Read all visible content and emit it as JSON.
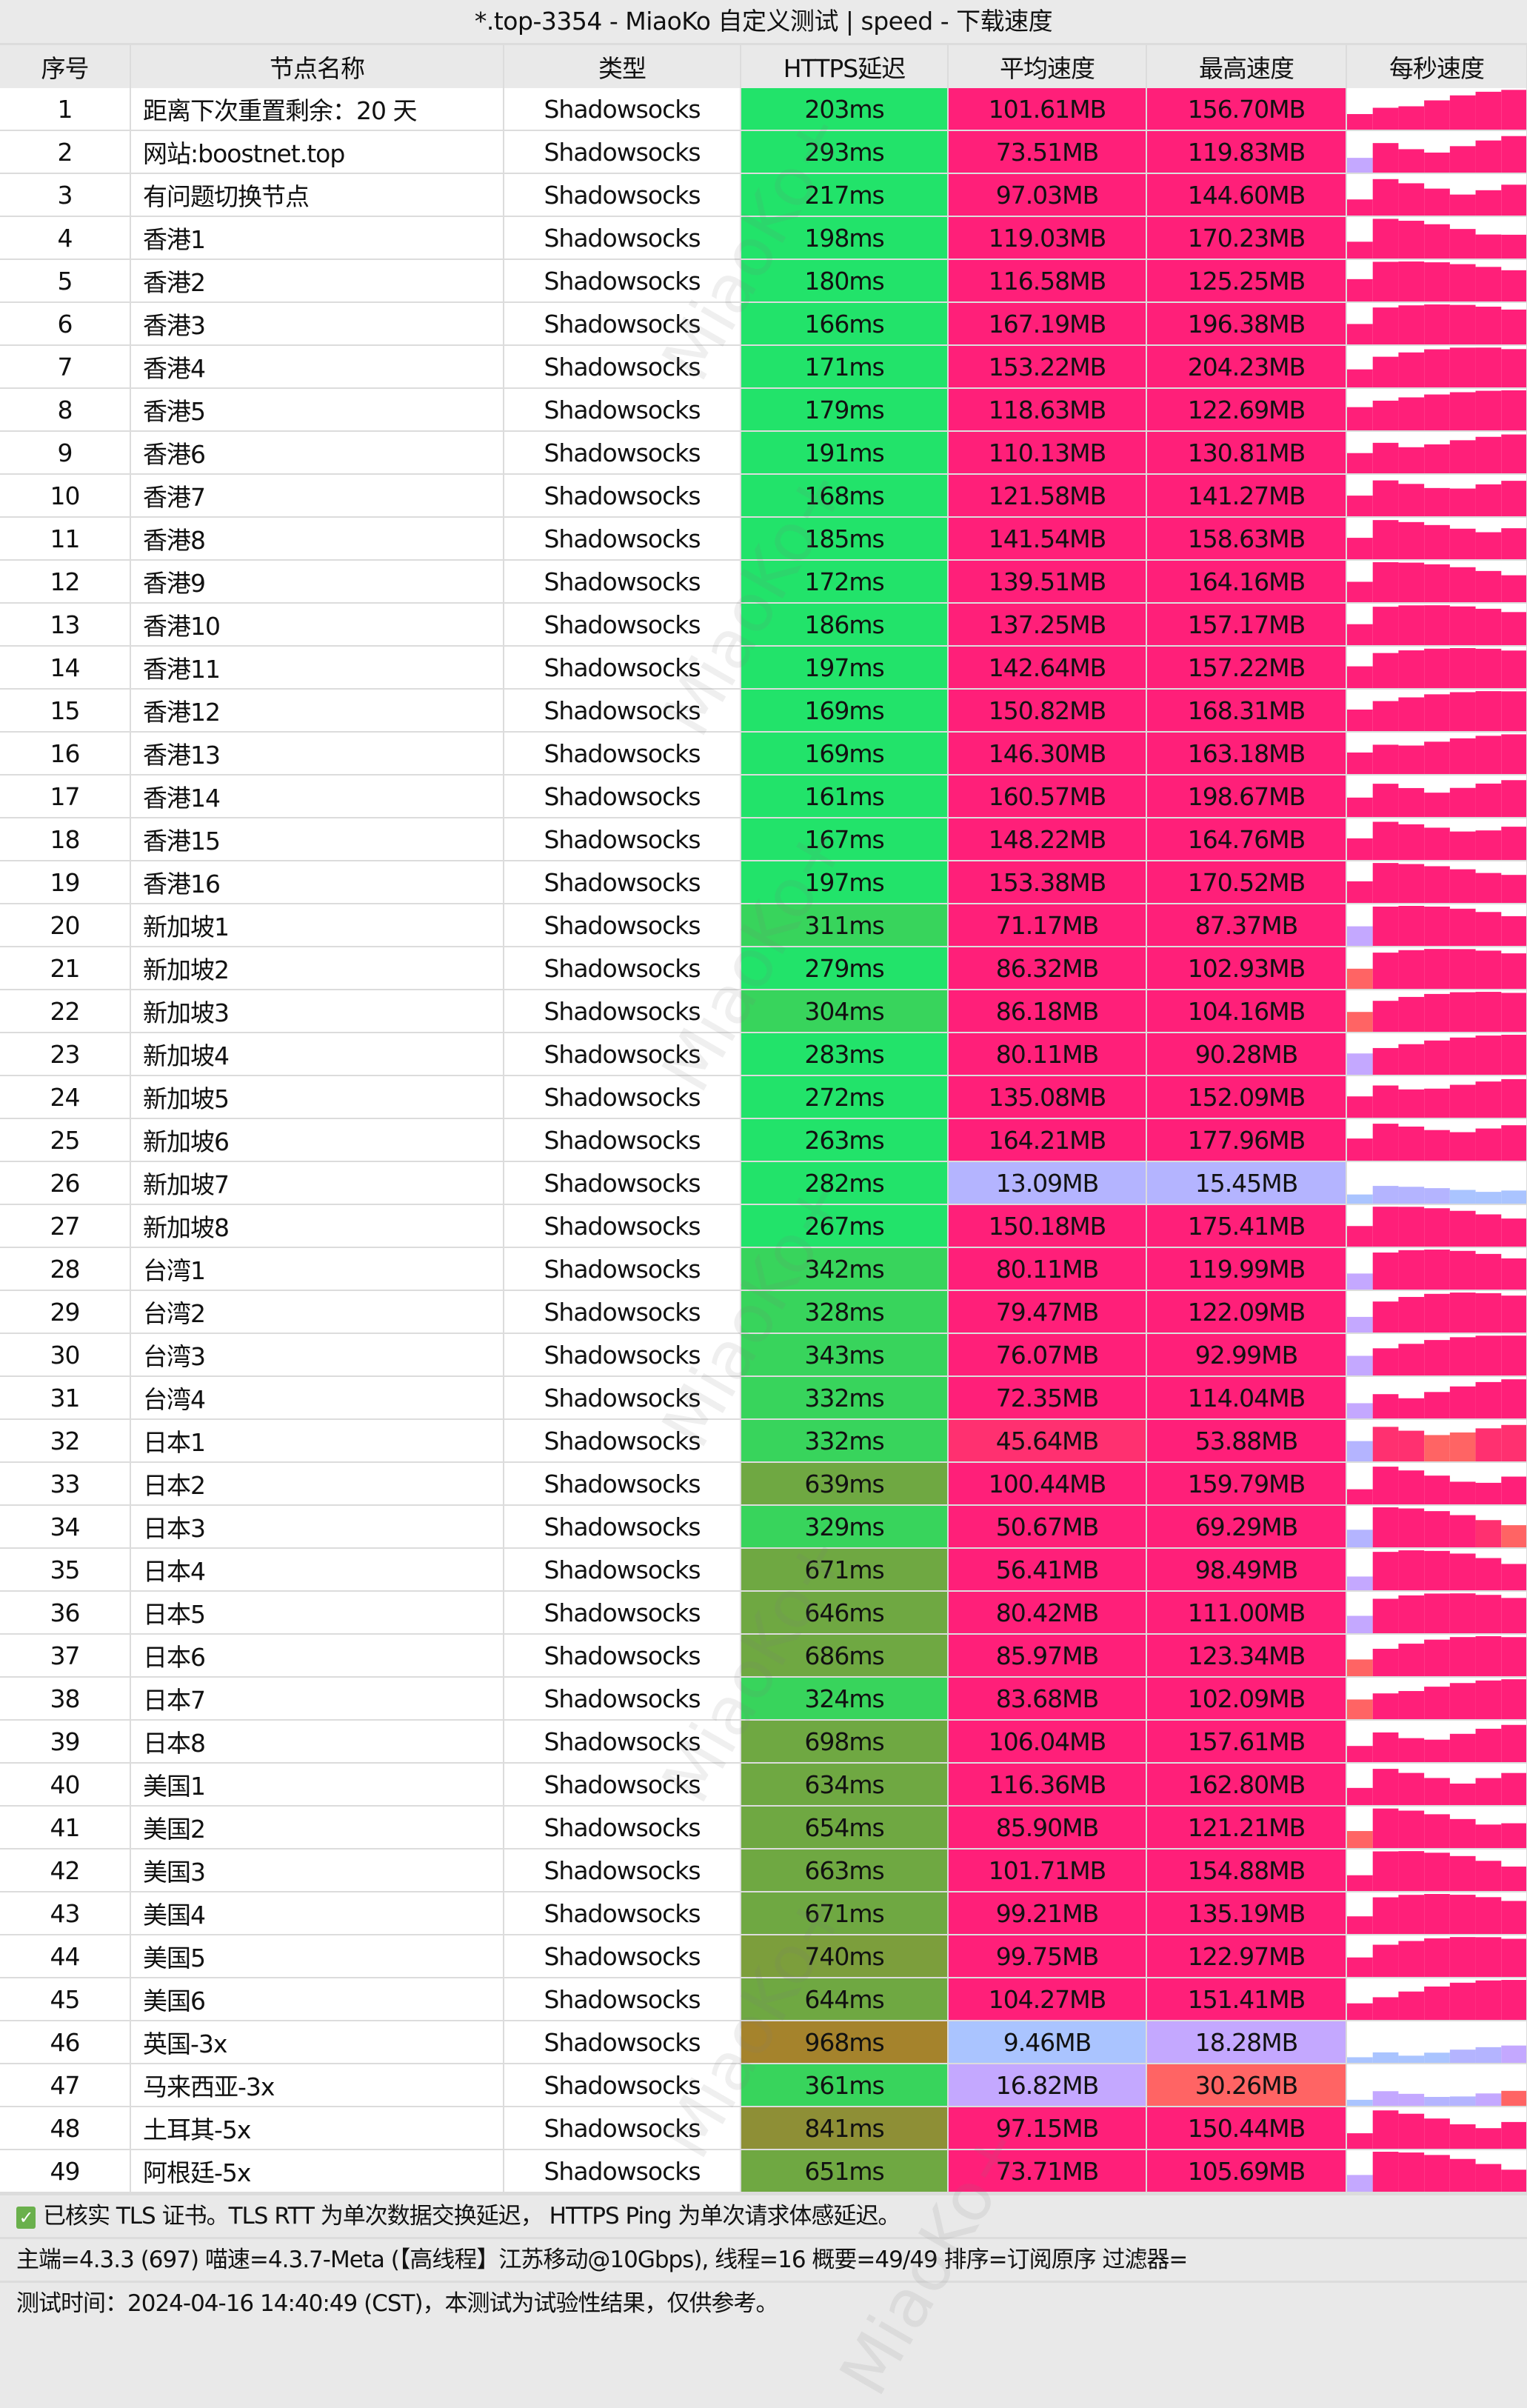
{
  "title": "*.top-3354 - MiaoKo 自定义测试 | speed - 下载速度",
  "headers": [
    "序号",
    "节点名称",
    "类型",
    "HTTPS延迟",
    "平均速度",
    "最高速度",
    "每秒速度"
  ],
  "colors": {
    "speed_high": "#ff1f79",
    "speed_mid": "#ff3070",
    "speed_low": "#ff6464",
    "speed_purple": "#c4a8ff",
    "speed_lavender": "#b4b4ff",
    "speed_blue": "#aac4ff",
    "lat_fast": "#22e36a",
    "lat_ok": "#38d45c",
    "lat_slow": "#6fa842",
    "lat_slower": "#7c9e3c",
    "lat_bad": "#8e8f36",
    "lat_worst": "#a5832c"
  },
  "rows": [
    {
      "id": "1",
      "name": "距离下次重置剩余：20 天",
      "type": "Shadowsocks",
      "latency": "203ms",
      "avg": "101.61MB",
      "max": "156.70MB"
    },
    {
      "id": "2",
      "name": "网站:boostnet.top",
      "type": "Shadowsocks",
      "latency": "293ms",
      "avg": "73.51MB",
      "max": "119.83MB"
    },
    {
      "id": "3",
      "name": "有问题切换节点",
      "type": "Shadowsocks",
      "latency": "217ms",
      "avg": "97.03MB",
      "max": "144.60MB"
    },
    {
      "id": "4",
      "name": "香港1",
      "type": "Shadowsocks",
      "latency": "198ms",
      "avg": "119.03MB",
      "max": "170.23MB"
    },
    {
      "id": "5",
      "name": "香港2",
      "type": "Shadowsocks",
      "latency": "180ms",
      "avg": "116.58MB",
      "max": "125.25MB"
    },
    {
      "id": "6",
      "name": "香港3",
      "type": "Shadowsocks",
      "latency": "166ms",
      "avg": "167.19MB",
      "max": "196.38MB"
    },
    {
      "id": "7",
      "name": "香港4",
      "type": "Shadowsocks",
      "latency": "171ms",
      "avg": "153.22MB",
      "max": "204.23MB"
    },
    {
      "id": "8",
      "name": "香港5",
      "type": "Shadowsocks",
      "latency": "179ms",
      "avg": "118.63MB",
      "max": "122.69MB"
    },
    {
      "id": "9",
      "name": "香港6",
      "type": "Shadowsocks",
      "latency": "191ms",
      "avg": "110.13MB",
      "max": "130.81MB"
    },
    {
      "id": "10",
      "name": "香港7",
      "type": "Shadowsocks",
      "latency": "168ms",
      "avg": "121.58MB",
      "max": "141.27MB"
    },
    {
      "id": "11",
      "name": "香港8",
      "type": "Shadowsocks",
      "latency": "185ms",
      "avg": "141.54MB",
      "max": "158.63MB"
    },
    {
      "id": "12",
      "name": "香港9",
      "type": "Shadowsocks",
      "latency": "172ms",
      "avg": "139.51MB",
      "max": "164.16MB"
    },
    {
      "id": "13",
      "name": "香港10",
      "type": "Shadowsocks",
      "latency": "186ms",
      "avg": "137.25MB",
      "max": "157.17MB"
    },
    {
      "id": "14",
      "name": "香港11",
      "type": "Shadowsocks",
      "latency": "197ms",
      "avg": "142.64MB",
      "max": "157.22MB"
    },
    {
      "id": "15",
      "name": "香港12",
      "type": "Shadowsocks",
      "latency": "169ms",
      "avg": "150.82MB",
      "max": "168.31MB"
    },
    {
      "id": "16",
      "name": "香港13",
      "type": "Shadowsocks",
      "latency": "169ms",
      "avg": "146.30MB",
      "max": "163.18MB"
    },
    {
      "id": "17",
      "name": "香港14",
      "type": "Shadowsocks",
      "latency": "161ms",
      "avg": "160.57MB",
      "max": "198.67MB"
    },
    {
      "id": "18",
      "name": "香港15",
      "type": "Shadowsocks",
      "latency": "167ms",
      "avg": "148.22MB",
      "max": "164.76MB"
    },
    {
      "id": "19",
      "name": "香港16",
      "type": "Shadowsocks",
      "latency": "197ms",
      "avg": "153.38MB",
      "max": "170.52MB"
    },
    {
      "id": "20",
      "name": "新加坡1",
      "type": "Shadowsocks",
      "latency": "311ms",
      "avg": "71.17MB",
      "max": "87.37MB"
    },
    {
      "id": "21",
      "name": "新加坡2",
      "type": "Shadowsocks",
      "latency": "279ms",
      "avg": "86.32MB",
      "max": "102.93MB"
    },
    {
      "id": "22",
      "name": "新加坡3",
      "type": "Shadowsocks",
      "latency": "304ms",
      "avg": "86.18MB",
      "max": "104.16MB"
    },
    {
      "id": "23",
      "name": "新加坡4",
      "type": "Shadowsocks",
      "latency": "283ms",
      "avg": "80.11MB",
      "max": "90.28MB"
    },
    {
      "id": "24",
      "name": "新加坡5",
      "type": "Shadowsocks",
      "latency": "272ms",
      "avg": "135.08MB",
      "max": "152.09MB"
    },
    {
      "id": "25",
      "name": "新加坡6",
      "type": "Shadowsocks",
      "latency": "263ms",
      "avg": "164.21MB",
      "max": "177.96MB"
    },
    {
      "id": "26",
      "name": "新加坡7",
      "type": "Shadowsocks",
      "latency": "282ms",
      "avg": "13.09MB",
      "max": "15.45MB"
    },
    {
      "id": "27",
      "name": "新加坡8",
      "type": "Shadowsocks",
      "latency": "267ms",
      "avg": "150.18MB",
      "max": "175.41MB"
    },
    {
      "id": "28",
      "name": "台湾1",
      "type": "Shadowsocks",
      "latency": "342ms",
      "avg": "80.11MB",
      "max": "119.99MB"
    },
    {
      "id": "29",
      "name": "台湾2",
      "type": "Shadowsocks",
      "latency": "328ms",
      "avg": "79.47MB",
      "max": "122.09MB"
    },
    {
      "id": "30",
      "name": "台湾3",
      "type": "Shadowsocks",
      "latency": "343ms",
      "avg": "76.07MB",
      "max": "92.99MB"
    },
    {
      "id": "31",
      "name": "台湾4",
      "type": "Shadowsocks",
      "latency": "332ms",
      "avg": "72.35MB",
      "max": "114.04MB"
    },
    {
      "id": "32",
      "name": "日本1",
      "type": "Shadowsocks",
      "latency": "332ms",
      "avg": "45.64MB",
      "max": "53.88MB"
    },
    {
      "id": "33",
      "name": "日本2",
      "type": "Shadowsocks",
      "latency": "639ms",
      "avg": "100.44MB",
      "max": "159.79MB"
    },
    {
      "id": "34",
      "name": "日本3",
      "type": "Shadowsocks",
      "latency": "329ms",
      "avg": "50.67MB",
      "max": "69.29MB"
    },
    {
      "id": "35",
      "name": "日本4",
      "type": "Shadowsocks",
      "latency": "671ms",
      "avg": "56.41MB",
      "max": "98.49MB"
    },
    {
      "id": "36",
      "name": "日本5",
      "type": "Shadowsocks",
      "latency": "646ms",
      "avg": "80.42MB",
      "max": "111.00MB"
    },
    {
      "id": "37",
      "name": "日本6",
      "type": "Shadowsocks",
      "latency": "686ms",
      "avg": "85.97MB",
      "max": "123.34MB"
    },
    {
      "id": "38",
      "name": "日本7",
      "type": "Shadowsocks",
      "latency": "324ms",
      "avg": "83.68MB",
      "max": "102.09MB"
    },
    {
      "id": "39",
      "name": "日本8",
      "type": "Shadowsocks",
      "latency": "698ms",
      "avg": "106.04MB",
      "max": "157.61MB"
    },
    {
      "id": "40",
      "name": "美国1",
      "type": "Shadowsocks",
      "latency": "634ms",
      "avg": "116.36MB",
      "max": "162.80MB"
    },
    {
      "id": "41",
      "name": "美国2",
      "type": "Shadowsocks",
      "latency": "654ms",
      "avg": "85.90MB",
      "max": "121.21MB"
    },
    {
      "id": "42",
      "name": "美国3",
      "type": "Shadowsocks",
      "latency": "663ms",
      "avg": "101.71MB",
      "max": "154.88MB"
    },
    {
      "id": "43",
      "name": "美国4",
      "type": "Shadowsocks",
      "latency": "671ms",
      "avg": "99.21MB",
      "max": "135.19MB"
    },
    {
      "id": "44",
      "name": "美国5",
      "type": "Shadowsocks",
      "latency": "740ms",
      "avg": "99.75MB",
      "max": "122.97MB"
    },
    {
      "id": "45",
      "name": "美国6",
      "type": "Shadowsocks",
      "latency": "644ms",
      "avg": "104.27MB",
      "max": "151.41MB"
    },
    {
      "id": "46",
      "name": "英国-3x",
      "type": "Shadowsocks",
      "latency": "968ms",
      "avg": "9.46MB",
      "max": "18.28MB"
    },
    {
      "id": "47",
      "name": "马来西亚-3x",
      "type": "Shadowsocks",
      "latency": "361ms",
      "avg": "16.82MB",
      "max": "30.26MB"
    },
    {
      "id": "48",
      "name": "土耳其-5x",
      "type": "Shadowsocks",
      "latency": "841ms",
      "avg": "97.15MB",
      "max": "150.44MB"
    },
    {
      "id": "49",
      "name": "阿根廷-5x",
      "type": "Shadowsocks",
      "latency": "651ms",
      "avg": "73.71MB",
      "max": "105.69MB"
    }
  ],
  "footer": {
    "tls_note": "已核实 TLS 证书。TLS RTT 为单次数据交换延迟， HTTPS Ping 为单次请求体感延迟。",
    "info": "主端=4.3.3 (697) 喵速=4.3.7-Meta (【高线程】江苏移动@10Gbps), 线程=16 概要=49/49 排序=订阅原序 过滤器=",
    "time": "测试时间：2024-04-16 14:40:49 (CST)，本测试为试验性结果，仅供参考。"
  },
  "watermark": "MiaoKo+"
}
